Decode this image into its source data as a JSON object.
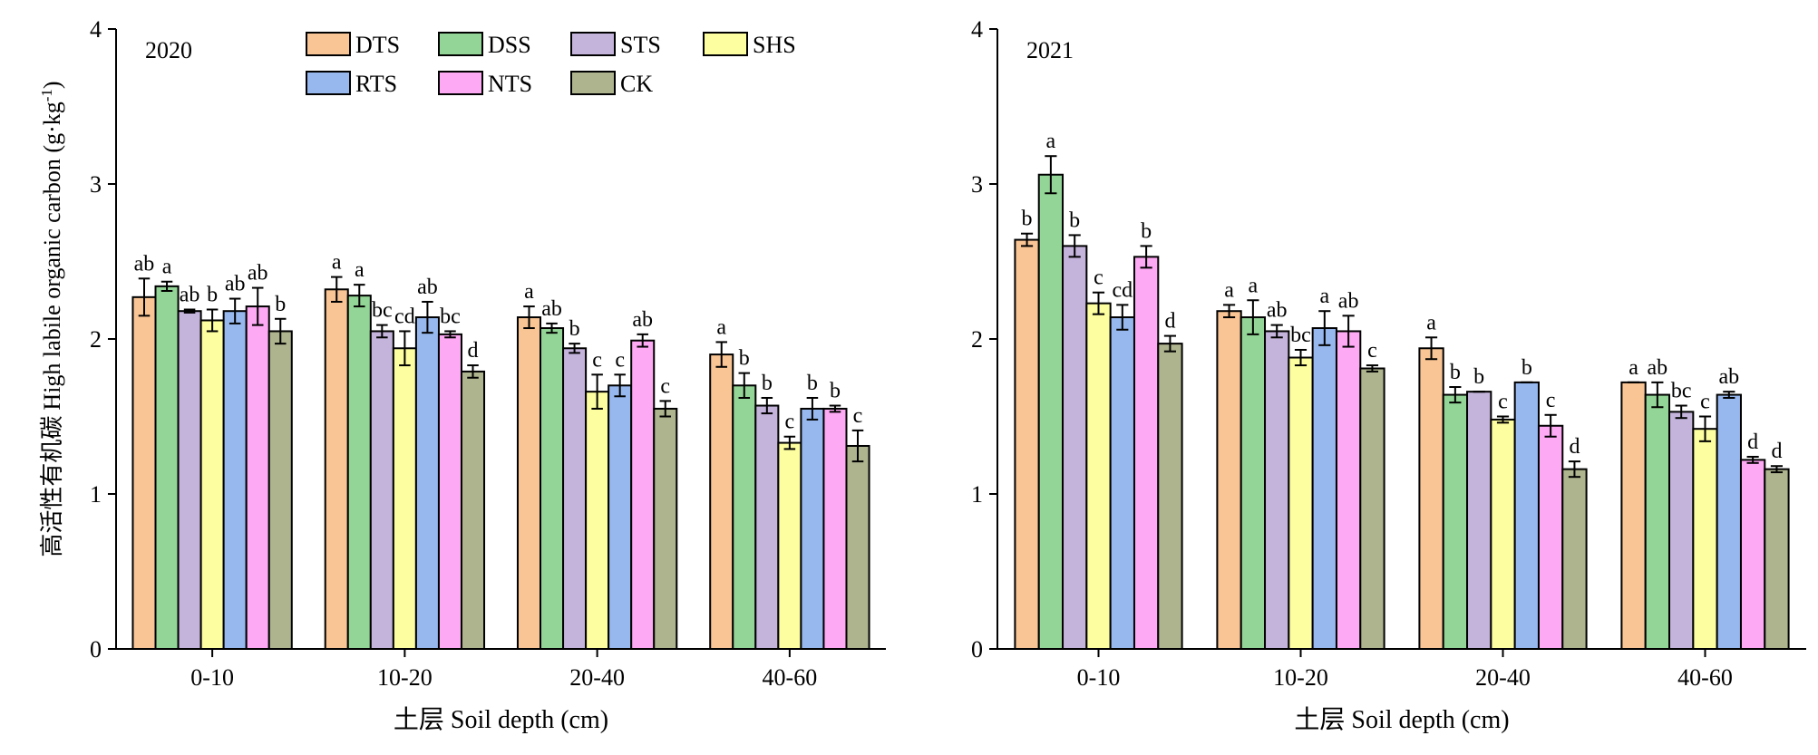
{
  "ylabel_cn": "高活性有机碳",
  "ylabel_en": "High labile organic carbon (g·kg",
  "ylabel_sup": "-1",
  "ylabel_close": ")",
  "xlabel": "土层 Soil depth (cm)",
  "legend": {
    "columns": 4,
    "entries": [
      {
        "name": "DTS",
        "color": "#F9C595"
      },
      {
        "name": "DSS",
        "color": "#93D596"
      },
      {
        "name": "STS",
        "color": "#C4B3DB"
      },
      {
        "name": "SHS",
        "color": "#FDFE9F"
      },
      {
        "name": "RTS",
        "color": "#97B8EF"
      },
      {
        "name": "NTS",
        "color": "#FDA9F3"
      },
      {
        "name": "CK",
        "color": "#AEB48E"
      }
    ]
  },
  "chart_data": [
    {
      "type": "bar",
      "title": "2020",
      "categories": [
        "0-10",
        "10-20",
        "20-40",
        "40-60"
      ],
      "ylim": [
        0,
        4
      ],
      "yticks": [
        0,
        1,
        2,
        3,
        4
      ],
      "grid": false,
      "legend_position": "top-center",
      "series": [
        {
          "name": "DTS",
          "values": [
            2.27,
            2.32,
            2.14,
            1.9
          ],
          "errors": [
            0.12,
            0.08,
            0.07,
            0.08
          ],
          "labels": [
            "ab",
            "a",
            "a",
            "a"
          ]
        },
        {
          "name": "DSS",
          "values": [
            2.34,
            2.28,
            2.07,
            1.7
          ],
          "errors": [
            0.03,
            0.07,
            0.03,
            0.08
          ],
          "labels": [
            "a",
            "a",
            "ab",
            "b"
          ]
        },
        {
          "name": "STS",
          "values": [
            2.18,
            2.05,
            1.94,
            1.57
          ],
          "errors": [
            0.01,
            0.04,
            0.03,
            0.05
          ],
          "labels": [
            "ab",
            "bc",
            "b",
            "b"
          ]
        },
        {
          "name": "SHS",
          "values": [
            2.12,
            1.94,
            1.66,
            1.33
          ],
          "errors": [
            0.07,
            0.11,
            0.11,
            0.04
          ],
          "labels": [
            "b",
            "cd",
            "c",
            "c"
          ]
        },
        {
          "name": "RTS",
          "values": [
            2.18,
            2.14,
            1.7,
            1.55
          ],
          "errors": [
            0.08,
            0.1,
            0.07,
            0.07
          ],
          "labels": [
            "ab",
            "ab",
            "c",
            "b"
          ]
        },
        {
          "name": "NTS",
          "values": [
            2.21,
            2.03,
            1.99,
            1.55
          ],
          "errors": [
            0.12,
            0.02,
            0.04,
            0.02
          ],
          "labels": [
            "ab",
            "bc",
            "ab",
            "b"
          ]
        },
        {
          "name": "CK",
          "values": [
            2.05,
            1.79,
            1.55,
            1.31
          ],
          "errors": [
            0.08,
            0.04,
            0.05,
            0.1
          ],
          "labels": [
            "b",
            "d",
            "c",
            "c"
          ]
        }
      ]
    },
    {
      "type": "bar",
      "title": "2021",
      "categories": [
        "0-10",
        "10-20",
        "20-40",
        "40-60"
      ],
      "ylim": [
        0,
        4
      ],
      "yticks": [
        0,
        1,
        2,
        3,
        4
      ],
      "grid": false,
      "series": [
        {
          "name": "DTS",
          "values": [
            2.64,
            2.18,
            1.94,
            1.72
          ],
          "errors": [
            0.04,
            0.04,
            0.07,
            0.0
          ],
          "labels": [
            "b",
            "a",
            "a",
            "a"
          ]
        },
        {
          "name": "DSS",
          "values": [
            3.06,
            2.14,
            1.64,
            1.64
          ],
          "errors": [
            0.12,
            0.11,
            0.05,
            0.08
          ],
          "labels": [
            "a",
            "a",
            "b",
            "ab"
          ]
        },
        {
          "name": "STS",
          "values": [
            2.6,
            2.05,
            1.66,
            1.53
          ],
          "errors": [
            0.07,
            0.04,
            0.0,
            0.04
          ],
          "labels": [
            "b",
            "ab",
            "b",
            "bc"
          ]
        },
        {
          "name": "SHS",
          "values": [
            2.23,
            1.88,
            1.48,
            1.42
          ],
          "errors": [
            0.07,
            0.05,
            0.02,
            0.08
          ],
          "labels": [
            "c",
            "bc",
            "c",
            "c"
          ]
        },
        {
          "name": "RTS",
          "values": [
            2.14,
            2.07,
            1.72,
            1.64
          ],
          "errors": [
            0.08,
            0.11,
            0.0,
            0.02
          ],
          "labels": [
            "cd",
            "a",
            "b",
            "ab"
          ]
        },
        {
          "name": "NTS",
          "values": [
            2.53,
            2.05,
            1.44,
            1.22
          ],
          "errors": [
            0.07,
            0.1,
            0.07,
            0.02
          ],
          "labels": [
            "b",
            "ab",
            "c",
            "d"
          ]
        },
        {
          "name": "CK",
          "values": [
            1.97,
            1.81,
            1.16,
            1.16
          ],
          "errors": [
            0.05,
            0.02,
            0.05,
            0.02
          ],
          "labels": [
            "d",
            "c",
            "d",
            "d"
          ]
        }
      ]
    }
  ]
}
